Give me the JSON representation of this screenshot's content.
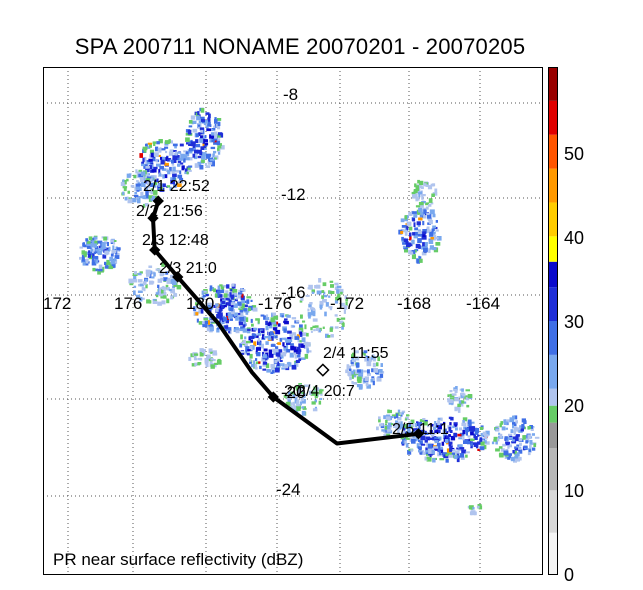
{
  "title": "SPA 200711 NONAME 20070201 - 20070205",
  "caption": "PR near surface reflectivity (dBZ)",
  "latitude_labels": [
    "-8",
    "-12",
    "-16",
    "-20",
    "-24"
  ],
  "longitude_labels": [
    "172",
    "176",
    "180",
    "-176",
    "-172",
    "-168",
    "-164"
  ],
  "colorbar": {
    "tick_labels": [
      "0",
      "10",
      "20",
      "30",
      "40",
      "50"
    ],
    "range_dbz": [
      0,
      60
    ],
    "colors": {
      "0-5": "#f4f4f4",
      "5-10": "#d8d8d8",
      "10-15": "#b8b8b8",
      "15-18": "#999999",
      "18-20": "#66cc66",
      "20-22": "#b0c4ee",
      "22-26": "#79a8ee",
      "26-30": "#3f6fe6",
      "30-34": "#1f2fd8",
      "34-37": "#0a0acc",
      "37-40": "#ffff00",
      "40-44": "#ffcc00",
      "44-48": "#ff9900",
      "48-52": "#ff5500",
      "52-56": "#e00000",
      "56-60": "#990000"
    }
  },
  "track": {
    "points": [
      {
        "label": "2/1 22:52",
        "lon": 177.1,
        "lat": -12.0
      },
      {
        "label": "2/2 21:56",
        "lon": 176.8,
        "lat": -12.7
      },
      {
        "label": "2/3 12:48",
        "lon": 176.9,
        "lat": -14.0
      },
      {
        "label": "2/3 21:0",
        "lon": 178.2,
        "lat": -15.1
      },
      {
        "label": "2/4 11:55",
        "lon": -173.6,
        "lat": -18.9
      },
      {
        "label": "2/4 20:7",
        "lon": -176.4,
        "lat": -20.0
      },
      {
        "label": "2/5 11:1",
        "lon": -168.2,
        "lat": -21.5
      }
    ],
    "mark_labels": [
      "20",
      "2/4 20:7"
    ],
    "line_color": "#000000"
  },
  "rain_color_bands": [
    "#66cc66",
    "#b0c4ee",
    "#79a8ee",
    "#3f6fe6",
    "#1f2fd8",
    "#0a0acc",
    "#ff9900",
    "#e00000"
  ]
}
